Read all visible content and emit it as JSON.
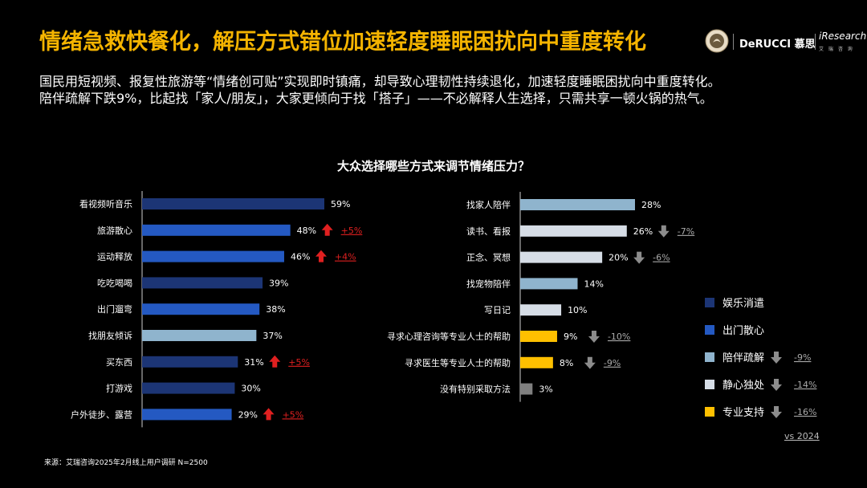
{
  "title": "情绪急救快餐化，解压方式错位加速轻度睡眠困扰向中重度转化",
  "subtitle": {
    "line1": "国民用短视频、报复性旅游等“情绪创可贴”实现即时镇痛，却导致心理韧性持续退化，加速轻度睡眠困扰向中重度转化。",
    "line2": "陪伴疏解下跌9%，比起找「家人/朋友」，大家更倾向于找「搭子」——不必解释人生选择，只需共享一顿火锅的热气。"
  },
  "logos": {
    "brand": "DeRUCCI 慕思",
    "partner": "iResearch",
    "partner_sub": "艾 瑞 咨 询"
  },
  "footer": "来源：艾瑞咨询2025年2月线上用户调研 N=2500",
  "colors": {
    "entertainment": "#1c3575",
    "outing": "#2459c2",
    "company": "#8fb4cd",
    "solitude": "#d6dde6",
    "professional": "#ffc000",
    "other": "#7f7f7f",
    "up": "#e02020",
    "down": "#8c8c8c"
  },
  "chart_data": {
    "type": "bar",
    "orientation": "horizontal",
    "title": "大众选择哪些方式来调节情绪压力？",
    "unit": "%",
    "xlim": [
      0,
      100
    ],
    "comparison_label": "vs 2024",
    "panels": [
      {
        "name": "left",
        "categories": [
          "看视频听音乐",
          "旅游散心",
          "运动释放",
          "吃吃喝喝",
          "出门遛弯",
          "找朋友倾诉",
          "买东西",
          "打游戏",
          "户外徒步、露营"
        ],
        "values": [
          59,
          48,
          46,
          39,
          38,
          37,
          31,
          30,
          29
        ],
        "groups": [
          "entertainment",
          "outing",
          "outing",
          "entertainment",
          "outing",
          "company",
          "entertainment",
          "entertainment",
          "outing"
        ],
        "changes": [
          "",
          "+5%",
          "+4%",
          "",
          "",
          "",
          "+5%",
          "",
          "+5%"
        ]
      },
      {
        "name": "right",
        "categories": [
          "找家人陪伴",
          "读书、看报",
          "正念、冥想",
          "找宠物陪伴",
          "写日记",
          "寻求心理咨询等专业人士的帮助",
          "寻求医生等专业人士的帮助",
          "没有特别采取方法"
        ],
        "values": [
          28,
          26,
          20,
          14,
          10,
          9,
          8,
          3
        ],
        "groups": [
          "company",
          "solitude",
          "solitude",
          "company",
          "solitude",
          "professional",
          "professional",
          "other"
        ],
        "changes": [
          "",
          "-7%",
          "-6%",
          "",
          "",
          "-10%",
          "-9%",
          ""
        ]
      }
    ],
    "legend": [
      {
        "label": "娱乐消遣",
        "group": "entertainment",
        "change": ""
      },
      {
        "label": "出门散心",
        "group": "outing",
        "change": ""
      },
      {
        "label": "陪伴疏解",
        "group": "company",
        "change": "-9%"
      },
      {
        "label": "静心独处",
        "group": "solitude",
        "change": "-14%"
      },
      {
        "label": "专业支持",
        "group": "professional",
        "change": "-16%"
      }
    ]
  }
}
